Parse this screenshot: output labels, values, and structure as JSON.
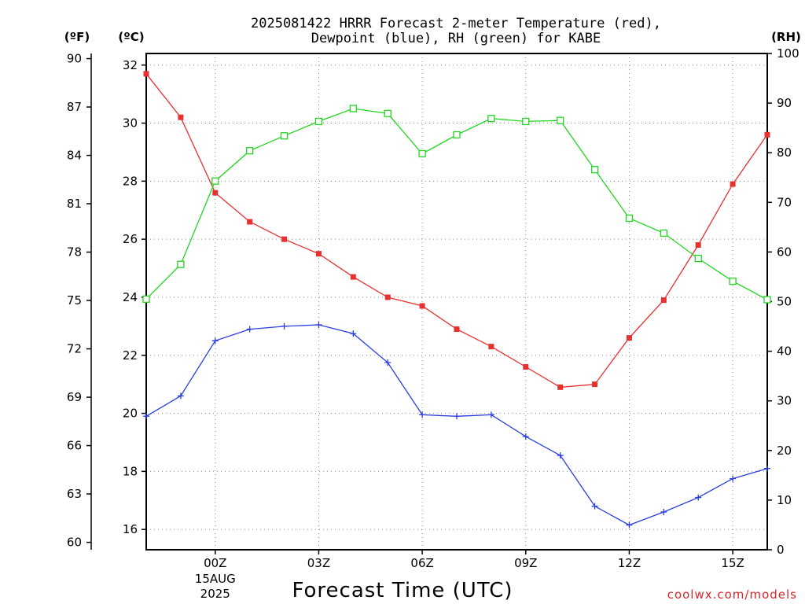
{
  "chart_data": {
    "type": "line",
    "title": [
      "2025081422 HRRR Forecast 2-meter Temperature (red),",
      "Dewpoint (blue), RH (green) for KABE"
    ],
    "left_outer_unit": "(ºF)",
    "left_inner_unit": "(ºC)",
    "right_unit": "(RH)",
    "xlabel": "Forecast Time (UTC)",
    "credit": "coolwx.com/models",
    "x_ticks": [
      {
        "hour": 2,
        "label": "00Z",
        "sub": [
          "15AUG",
          "2025"
        ]
      },
      {
        "hour": 5,
        "label": "03Z"
      },
      {
        "hour": 8,
        "label": "06Z"
      },
      {
        "hour": 11,
        "label": "09Z"
      },
      {
        "hour": 14,
        "label": "12Z"
      },
      {
        "hour": 17,
        "label": "15Z"
      }
    ],
    "xlim": [
      0,
      18
    ],
    "celsius_axis": {
      "ylim": [
        15.3,
        32.4
      ],
      "ticks": [
        16,
        18,
        20,
        22,
        24,
        26,
        28,
        30,
        32
      ]
    },
    "fahrenheit_axis": {
      "ticks": [
        60,
        63,
        66,
        69,
        72,
        75,
        78,
        81,
        84,
        87,
        90
      ]
    },
    "rh_axis": {
      "ylim": [
        0,
        100
      ],
      "ticks": [
        0,
        10,
        20,
        30,
        40,
        50,
        60,
        70,
        80,
        90,
        100
      ]
    },
    "series": [
      {
        "name": "Temperature",
        "axis": "C",
        "color": "#e83030",
        "marker": "filled-square",
        "values": [
          31.7,
          30.2,
          27.6,
          26.6,
          26.0,
          25.5,
          24.7,
          24.0,
          23.7,
          22.9,
          22.3,
          21.6,
          20.9,
          21.0,
          22.6,
          23.9,
          25.8,
          27.9,
          29.6
        ]
      },
      {
        "name": "Dewpoint",
        "axis": "C",
        "color": "#2a3de0",
        "marker": "plus",
        "values": [
          19.9,
          20.6,
          22.5,
          22.9,
          23.0,
          23.05,
          22.75,
          21.75,
          19.95,
          19.9,
          19.95,
          19.2,
          18.55,
          16.8,
          16.15,
          16.6,
          17.1,
          17.75,
          18.1
        ]
      },
      {
        "name": "RH",
        "axis": "RH",
        "color": "#22d622",
        "marker": "open-square",
        "values": [
          50.5,
          57.5,
          74.3,
          80.4,
          83.4,
          86.3,
          88.9,
          87.9,
          79.8,
          83.6,
          86.9,
          86.3,
          86.5,
          76.6,
          66.8,
          63.8,
          58.7,
          54.1,
          50.4
        ]
      }
    ]
  }
}
